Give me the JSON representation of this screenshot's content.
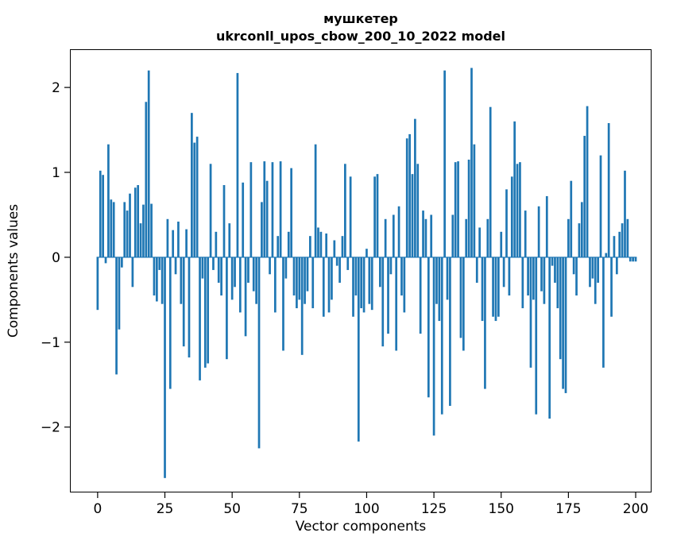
{
  "figure": {
    "background": "#ffffff",
    "frame_color": "#000000"
  },
  "chart_data": {
    "type": "bar",
    "title_line1": "мушкетер",
    "title_line2": "ukrconll_upos_cbow_200_10_2022 model",
    "xlabel": "Vector components",
    "ylabel": "Components values",
    "bar_color": "#1f77b4",
    "xlim": [
      -10.3,
      205.9
    ],
    "ylim": [
      -2.77,
      2.45
    ],
    "xticks": [
      0,
      25,
      50,
      75,
      100,
      125,
      150,
      175,
      200
    ],
    "xtick_labels": [
      "0",
      "25",
      "50",
      "75",
      "100",
      "125",
      "150",
      "175",
      "200"
    ],
    "yticks": [
      -2,
      -1,
      0,
      1,
      2
    ],
    "ytick_labels": [
      "−2",
      "−1",
      "0",
      "1",
      "2"
    ],
    "x_start": 0,
    "values": [
      -0.62,
      1.02,
      0.97,
      -0.07,
      1.33,
      0.68,
      0.65,
      -1.38,
      -0.85,
      -0.12,
      0.65,
      0.55,
      0.75,
      -0.35,
      0.82,
      0.85,
      0.4,
      0.62,
      1.83,
      2.2,
      0.63,
      -0.45,
      -0.52,
      -0.15,
      -0.55,
      -2.6,
      0.45,
      -1.55,
      0.32,
      -0.2,
      0.42,
      -0.55,
      -1.05,
      0.33,
      -1.18,
      1.7,
      1.35,
      1.42,
      -1.45,
      -0.25,
      -1.3,
      -1.25,
      1.1,
      -0.15,
      0.3,
      -0.3,
      -0.45,
      0.85,
      -1.2,
      0.4,
      -0.5,
      -0.35,
      2.17,
      -0.65,
      0.88,
      -0.93,
      -0.3,
      1.12,
      -0.4,
      -0.55,
      -2.25,
      0.65,
      1.13,
      0.9,
      -0.2,
      1.12,
      -0.65,
      0.25,
      1.13,
      -1.1,
      -0.25,
      0.3,
      1.05,
      -0.45,
      -0.6,
      -0.5,
      -1.15,
      -0.55,
      -0.4,
      0.25,
      -0.6,
      1.33,
      0.35,
      0.3,
      -0.7,
      0.28,
      -0.65,
      -0.5,
      0.2,
      -0.1,
      -0.3,
      0.25,
      1.1,
      -0.15,
      0.95,
      -0.7,
      -0.45,
      -2.17,
      -0.6,
      -0.65,
      0.1,
      -0.55,
      -0.62,
      0.95,
      0.98,
      -0.35,
      -1.05,
      0.45,
      -0.9,
      -0.2,
      0.5,
      -1.1,
      0.6,
      -0.45,
      -0.65,
      1.4,
      1.45,
      0.98,
      1.63,
      1.1,
      -0.9,
      0.55,
      0.45,
      -1.65,
      0.5,
      -2.1,
      -0.55,
      -0.75,
      -1.85,
      2.2,
      -0.5,
      -1.75,
      0.5,
      1.12,
      1.13,
      -0.95,
      -1.1,
      0.45,
      1.15,
      2.23,
      1.33,
      -0.3,
      0.35,
      -0.75,
      -1.55,
      0.45,
      1.77,
      -0.7,
      -0.75,
      -0.7,
      0.3,
      -0.35,
      0.8,
      -0.45,
      0.95,
      1.6,
      1.1,
      1.12,
      -0.6,
      0.55,
      -0.45,
      -1.3,
      -0.5,
      -1.85,
      0.6,
      -0.4,
      -0.55,
      0.72,
      -1.9,
      -0.1,
      -0.3,
      -0.6,
      -1.2,
      -1.55,
      -1.6,
      0.45,
      0.9,
      -0.2,
      -0.45,
      0.4,
      0.65,
      1.43,
      1.78,
      -0.35,
      -0.25,
      -0.55,
      -0.3,
      1.2,
      -1.3,
      0.05,
      1.58,
      -0.7,
      0.25,
      -0.2,
      0.3,
      0.4,
      1.02,
      0.45,
      -0.05,
      -0.05,
      -0.05
    ]
  }
}
